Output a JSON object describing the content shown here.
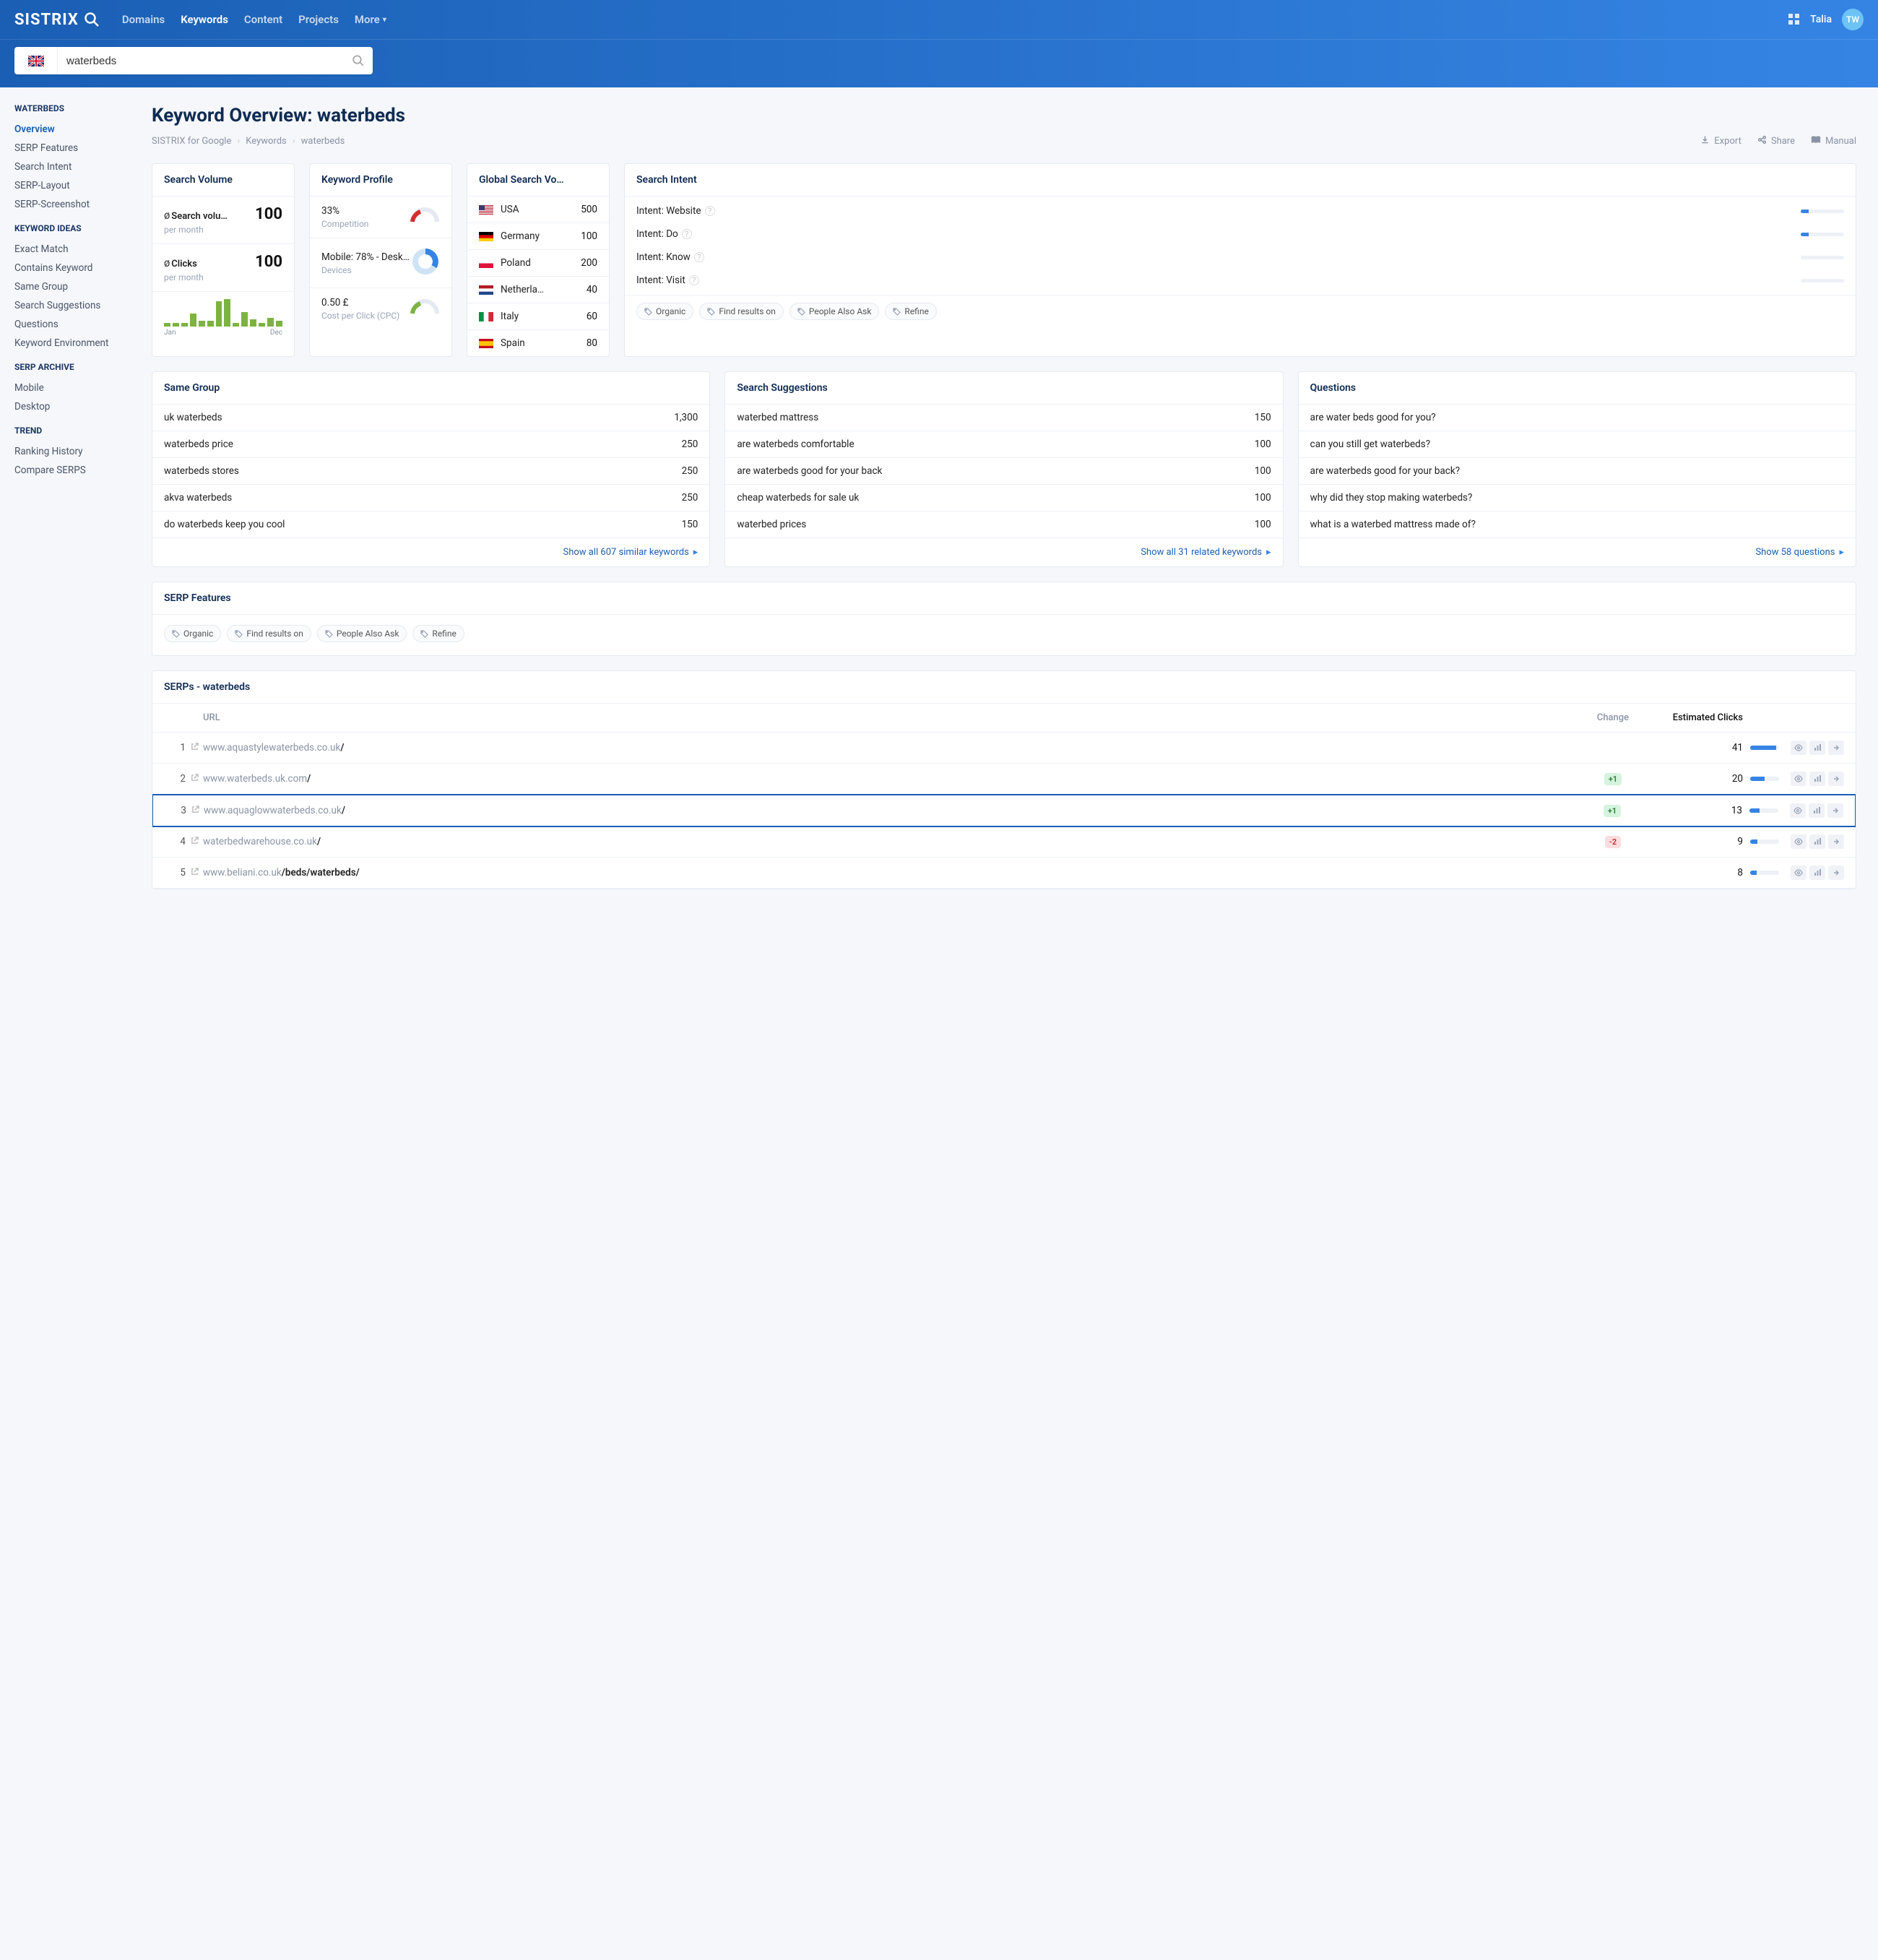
{
  "brand": "SISTRIX",
  "nav": [
    "Domains",
    "Keywords",
    "Content",
    "Projects",
    "More"
  ],
  "nav_active": 1,
  "user": {
    "name": "Talia",
    "initials": "TW"
  },
  "search_value": "waterbeds",
  "sidebar": {
    "groups": [
      {
        "title": "WATERBEDS",
        "items": [
          "Overview",
          "SERP Features",
          "Search Intent",
          "SERP-Layout",
          "SERP-Screenshot"
        ],
        "active": 0
      },
      {
        "title": "KEYWORD IDEAS",
        "items": [
          "Exact Match",
          "Contains Keyword",
          "Same Group",
          "Search Suggestions",
          "Questions",
          "Keyword Environment"
        ],
        "active": -1
      },
      {
        "title": "SERP ARCHIVE",
        "items": [
          "Mobile",
          "Desktop"
        ],
        "active": -1
      },
      {
        "title": "TREND",
        "items": [
          "Ranking History",
          "Compare SERPS"
        ],
        "active": -1
      }
    ]
  },
  "page_title": "Keyword Overview: waterbeds",
  "breadcrumb": [
    "SISTRIX for Google",
    "Keywords",
    "waterbeds"
  ],
  "actions": [
    "Export",
    "Share",
    "Manual"
  ],
  "search_volume_card": {
    "title": "Search Volume",
    "volume_label": "Search volu…",
    "volume_value": "100",
    "per_month": "per month",
    "clicks_label": "Clicks",
    "clicks_value": "100",
    "bars": [
      5,
      5,
      5,
      18,
      8,
      8,
      35,
      38,
      5,
      20,
      10,
      5,
      12,
      8
    ],
    "bar_color": "#7cb342",
    "x0": "Jan",
    "x1": "Dec"
  },
  "profile_card": {
    "title": "Keyword Profile",
    "rows": [
      {
        "value": "33%",
        "label": "Competition",
        "viz": "gauge",
        "color": "#d32f2f"
      },
      {
        "value": "Mobile: 78% - Desktop…",
        "label": "Devices",
        "viz": "donut",
        "color": "#3584e4"
      },
      {
        "value": "0.50 £",
        "label": "Cost per Click (CPC)",
        "viz": "gauge",
        "color": "#7cb342"
      }
    ]
  },
  "global_card": {
    "title": "Global Search Vo…",
    "rows": [
      {
        "country": "USA",
        "flag": "us",
        "value": "500"
      },
      {
        "country": "Germany",
        "flag": "de",
        "value": "100"
      },
      {
        "country": "Poland",
        "flag": "pl",
        "value": "200"
      },
      {
        "country": "Netherla…",
        "flag": "nl",
        "value": "40"
      },
      {
        "country": "Italy",
        "flag": "it",
        "value": "60"
      },
      {
        "country": "Spain",
        "flag": "es",
        "value": "80"
      }
    ]
  },
  "intent_card": {
    "title": "Search Intent",
    "rows": [
      {
        "label": "Intent: Website",
        "pct": 18
      },
      {
        "label": "Intent: Do",
        "pct": 18
      },
      {
        "label": "Intent: Know",
        "pct": 0
      },
      {
        "label": "Intent: Visit",
        "pct": 0
      }
    ],
    "tags": [
      "Organic",
      "Find results on",
      "People Also Ask",
      "Refine"
    ]
  },
  "same_group": {
    "title": "Same Group",
    "rows": [
      [
        "uk waterbeds",
        "1,300"
      ],
      [
        "waterbeds price",
        "250"
      ],
      [
        "waterbeds stores",
        "250"
      ],
      [
        "akva waterbeds",
        "250"
      ],
      [
        "do waterbeds keep you cool",
        "150"
      ]
    ],
    "show_all": "Show all 607 similar keywords"
  },
  "suggestions": {
    "title": "Search Suggestions",
    "rows": [
      [
        "waterbed mattress",
        "150"
      ],
      [
        "are waterbeds comfortable",
        "100"
      ],
      [
        "are waterbeds good for your back",
        "100"
      ],
      [
        "cheap waterbeds for sale uk",
        "100"
      ],
      [
        "waterbed prices",
        "100"
      ]
    ],
    "show_all": "Show all 31 related keywords"
  },
  "questions": {
    "title": "Questions",
    "rows": [
      "are water beds good for you?",
      "can you still get waterbeds?",
      "are waterbeds good for your back?",
      "why did they stop making waterbeds?",
      "what is a waterbed mattress made of?"
    ],
    "show_all": "Show 58 questions"
  },
  "serp_features": {
    "title": "SERP Features",
    "tags": [
      "Organic",
      "Find results on",
      "People Also Ask",
      "Refine"
    ]
  },
  "serp_table": {
    "title": "SERPs - waterbeds",
    "headers": {
      "url": "URL",
      "change": "Change",
      "clicks": "Estimated Clicks"
    },
    "rows": [
      {
        "pos": "1",
        "url_pre": "www.aquastylewaterbeds.co.uk",
        "url_bold": "/",
        "change": "",
        "change_dir": "",
        "clicks": "41",
        "bar": 90,
        "highlight": false
      },
      {
        "pos": "2",
        "url_pre": "www.waterbeds.uk.com",
        "url_bold": "/",
        "change": "+1",
        "change_dir": "up",
        "clicks": "20",
        "bar": 50,
        "highlight": false
      },
      {
        "pos": "3",
        "url_pre": "www.aquaglowwaterbeds.co.uk",
        "url_bold": "/",
        "change": "+1",
        "change_dir": "up",
        "clicks": "13",
        "bar": 35,
        "highlight": true
      },
      {
        "pos": "4",
        "url_pre": "waterbedwarehouse.co.uk",
        "url_bold": "/",
        "change": "-2",
        "change_dir": "down",
        "clicks": "9",
        "bar": 25,
        "highlight": false
      },
      {
        "pos": "5",
        "url_pre": "www.beliani.co.uk",
        "url_bold": "/beds/waterbeds/",
        "change": "",
        "change_dir": "",
        "clicks": "8",
        "bar": 22,
        "highlight": false
      }
    ]
  }
}
